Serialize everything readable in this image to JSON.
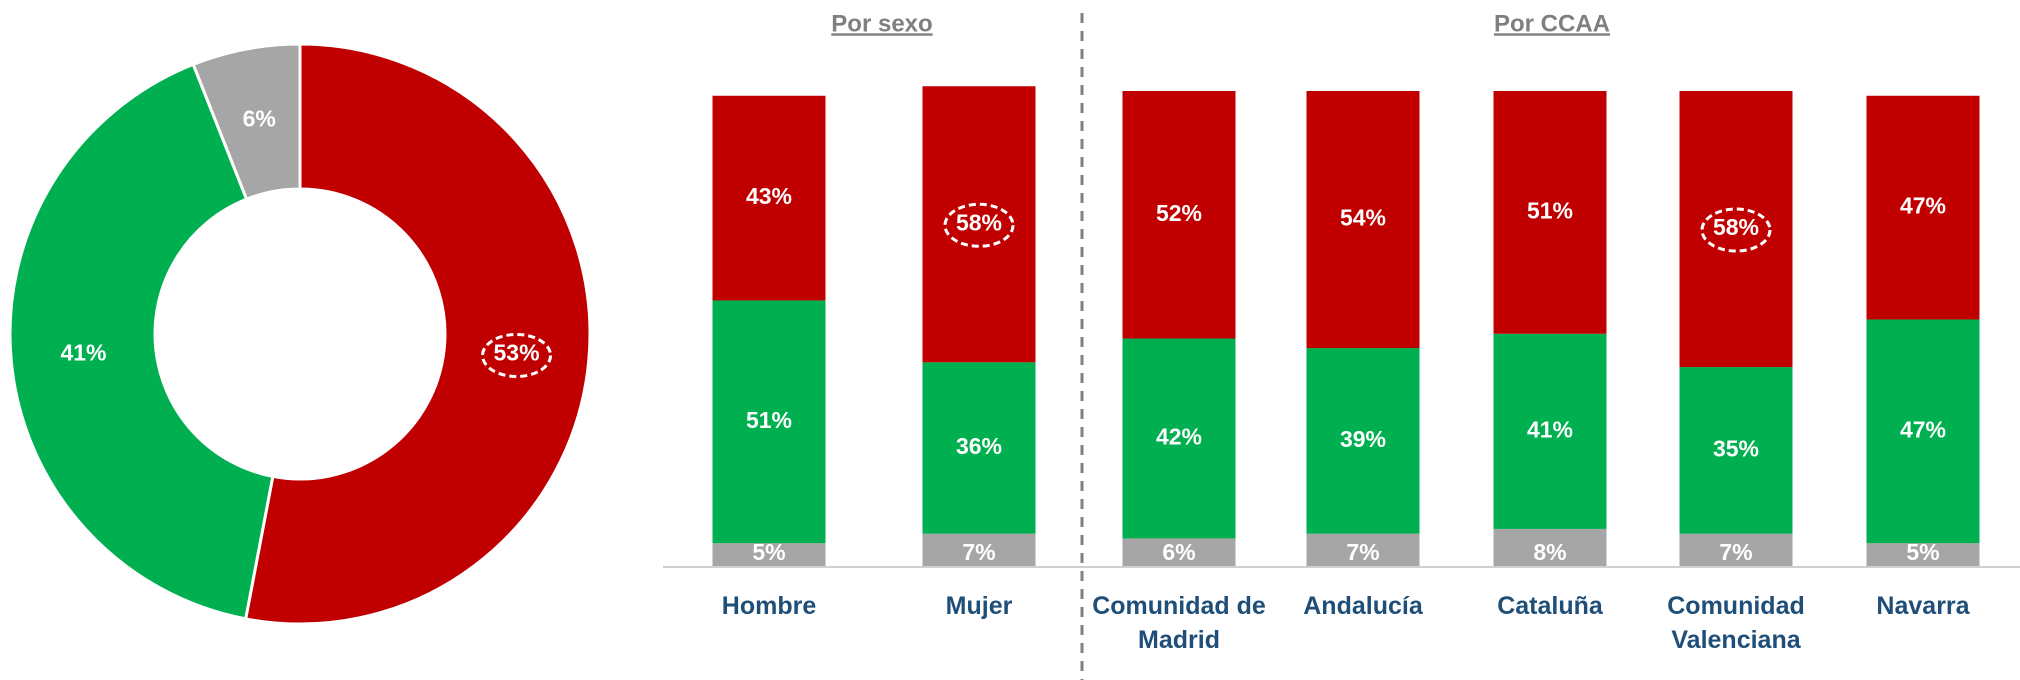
{
  "chart_data": [
    {
      "type": "pie",
      "values": [
        53,
        41,
        6
      ],
      "value_labels": [
        "53%",
        "41%",
        "6%"
      ],
      "colors": [
        "#c00000",
        "#00b050",
        "#a6a6a6"
      ],
      "hole": 0.5
    },
    {
      "type": "bar",
      "stacked": true,
      "categories": [
        "Hombre",
        "Mujer",
        "Comunidad de Madrid",
        "Andalucía",
        "Cataluña",
        "Comunidad Valenciana",
        "Navarra"
      ],
      "series": [
        {
          "color": "#a6a6a6",
          "values": [
            5,
            7,
            6,
            7,
            8,
            7,
            5
          ],
          "value_labels": [
            "5%",
            "7%",
            "6%",
            "7%",
            "8%",
            "7%",
            "5%"
          ]
        },
        {
          "color": "#00b050",
          "values": [
            51,
            36,
            42,
            39,
            41,
            35,
            47
          ],
          "value_labels": [
            "51%",
            "36%",
            "42%",
            "39%",
            "41%",
            "35%",
            "47%"
          ]
        },
        {
          "color": "#c00000",
          "values": [
            43,
            58,
            52,
            54,
            51,
            58,
            47
          ],
          "value_labels": [
            "43%",
            "58%",
            "52%",
            "54%",
            "51%",
            "58%",
            "47%"
          ]
        }
      ],
      "ylim": [
        0,
        100
      ],
      "annotations": [
        {
          "text": "Por sexo"
        },
        {
          "text": "Por CCAA"
        }
      ]
    }
  ]
}
